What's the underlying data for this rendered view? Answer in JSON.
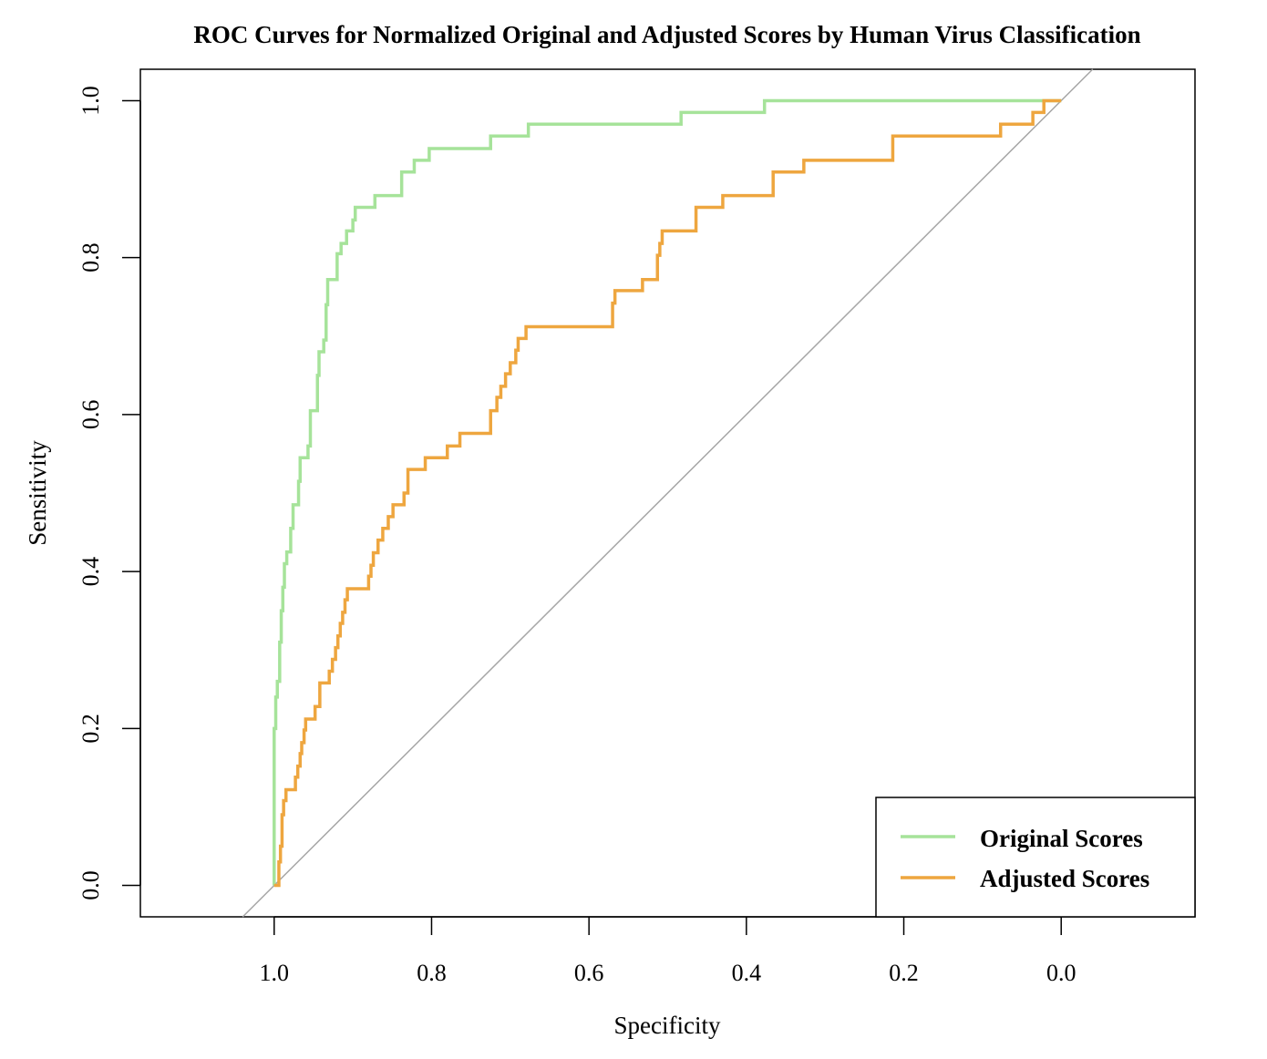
{
  "chart_data": {
    "type": "line",
    "title": "ROC Curves for Normalized Original and Adjusted Scores by Human Virus Classification",
    "xlabel": "Specificity",
    "ylabel": "Sensitivity",
    "x_reversed": true,
    "xlim": [
      1.17,
      -0.17
    ],
    "ylim": [
      -0.04,
      1.04
    ],
    "xticks": [
      "1.0",
      "0.8",
      "0.6",
      "0.4",
      "0.2",
      "0.0"
    ],
    "xtick_values": [
      1.0,
      0.8,
      0.6,
      0.4,
      0.2,
      0.0
    ],
    "yticks": [
      "0.0",
      "0.2",
      "0.4",
      "0.6",
      "0.8",
      "1.0"
    ],
    "ytick_values": [
      0.0,
      0.2,
      0.4,
      0.6,
      0.8,
      1.0
    ],
    "grid": false,
    "legend_position": "bottom-right",
    "reference_line": {
      "from": [
        1.0,
        0.0
      ],
      "to": [
        0.0,
        1.0
      ],
      "color": "#a6a6a6"
    },
    "series": [
      {
        "name": "Original Scores",
        "color": "#a6e39a",
        "points": [
          [
            1.0,
            0.0
          ],
          [
            1.0,
            0.2
          ],
          [
            0.998,
            0.2
          ],
          [
            0.998,
            0.24
          ],
          [
            0.996,
            0.24
          ],
          [
            0.996,
            0.26
          ],
          [
            0.993,
            0.26
          ],
          [
            0.993,
            0.31
          ],
          [
            0.991,
            0.31
          ],
          [
            0.991,
            0.35
          ],
          [
            0.989,
            0.35
          ],
          [
            0.989,
            0.38
          ],
          [
            0.987,
            0.38
          ],
          [
            0.987,
            0.41
          ],
          [
            0.984,
            0.41
          ],
          [
            0.984,
            0.425
          ],
          [
            0.979,
            0.425
          ],
          [
            0.979,
            0.455
          ],
          [
            0.976,
            0.455
          ],
          [
            0.976,
            0.485
          ],
          [
            0.969,
            0.485
          ],
          [
            0.969,
            0.515
          ],
          [
            0.967,
            0.515
          ],
          [
            0.967,
            0.545
          ],
          [
            0.957,
            0.545
          ],
          [
            0.957,
            0.56
          ],
          [
            0.954,
            0.56
          ],
          [
            0.954,
            0.605
          ],
          [
            0.945,
            0.605
          ],
          [
            0.945,
            0.65
          ],
          [
            0.943,
            0.65
          ],
          [
            0.943,
            0.68
          ],
          [
            0.937,
            0.68
          ],
          [
            0.937,
            0.695
          ],
          [
            0.934,
            0.695
          ],
          [
            0.934,
            0.74
          ],
          [
            0.932,
            0.74
          ],
          [
            0.932,
            0.772
          ],
          [
            0.92,
            0.772
          ],
          [
            0.92,
            0.805
          ],
          [
            0.915,
            0.805
          ],
          [
            0.915,
            0.818
          ],
          [
            0.908,
            0.818
          ],
          [
            0.908,
            0.834
          ],
          [
            0.9,
            0.834
          ],
          [
            0.9,
            0.848
          ],
          [
            0.897,
            0.848
          ],
          [
            0.897,
            0.864
          ],
          [
            0.872,
            0.864
          ],
          [
            0.872,
            0.879
          ],
          [
            0.838,
            0.879
          ],
          [
            0.838,
            0.909
          ],
          [
            0.822,
            0.909
          ],
          [
            0.822,
            0.924
          ],
          [
            0.803,
            0.924
          ],
          [
            0.803,
            0.939
          ],
          [
            0.725,
            0.939
          ],
          [
            0.725,
            0.955
          ],
          [
            0.677,
            0.955
          ],
          [
            0.677,
            0.97
          ],
          [
            0.483,
            0.97
          ],
          [
            0.483,
            0.985
          ],
          [
            0.377,
            0.985
          ],
          [
            0.377,
            1.0
          ],
          [
            0.0,
            1.0
          ]
        ]
      },
      {
        "name": "Adjusted Scores",
        "color": "#eea63f",
        "points": [
          [
            1.0,
            0.0
          ],
          [
            0.994,
            0.0
          ],
          [
            0.994,
            0.03
          ],
          [
            0.992,
            0.03
          ],
          [
            0.992,
            0.05
          ],
          [
            0.99,
            0.05
          ],
          [
            0.99,
            0.09
          ],
          [
            0.988,
            0.09
          ],
          [
            0.988,
            0.108
          ],
          [
            0.985,
            0.108
          ],
          [
            0.985,
            0.122
          ],
          [
            0.973,
            0.122
          ],
          [
            0.973,
            0.138
          ],
          [
            0.97,
            0.138
          ],
          [
            0.97,
            0.152
          ],
          [
            0.967,
            0.152
          ],
          [
            0.967,
            0.168
          ],
          [
            0.965,
            0.168
          ],
          [
            0.965,
            0.182
          ],
          [
            0.962,
            0.182
          ],
          [
            0.962,
            0.198
          ],
          [
            0.96,
            0.198
          ],
          [
            0.96,
            0.212
          ],
          [
            0.948,
            0.212
          ],
          [
            0.948,
            0.228
          ],
          [
            0.942,
            0.228
          ],
          [
            0.942,
            0.258
          ],
          [
            0.93,
            0.258
          ],
          [
            0.93,
            0.273
          ],
          [
            0.926,
            0.273
          ],
          [
            0.926,
            0.288
          ],
          [
            0.922,
            0.288
          ],
          [
            0.922,
            0.303
          ],
          [
            0.919,
            0.303
          ],
          [
            0.919,
            0.318
          ],
          [
            0.916,
            0.318
          ],
          [
            0.916,
            0.334
          ],
          [
            0.913,
            0.334
          ],
          [
            0.913,
            0.348
          ],
          [
            0.91,
            0.348
          ],
          [
            0.91,
            0.364
          ],
          [
            0.907,
            0.364
          ],
          [
            0.907,
            0.378
          ],
          [
            0.88,
            0.378
          ],
          [
            0.88,
            0.394
          ],
          [
            0.877,
            0.394
          ],
          [
            0.877,
            0.408
          ],
          [
            0.874,
            0.408
          ],
          [
            0.874,
            0.424
          ],
          [
            0.868,
            0.424
          ],
          [
            0.868,
            0.44
          ],
          [
            0.862,
            0.44
          ],
          [
            0.862,
            0.455
          ],
          [
            0.855,
            0.455
          ],
          [
            0.855,
            0.47
          ],
          [
            0.849,
            0.47
          ],
          [
            0.849,
            0.485
          ],
          [
            0.835,
            0.485
          ],
          [
            0.835,
            0.5
          ],
          [
            0.83,
            0.5
          ],
          [
            0.83,
            0.53
          ],
          [
            0.808,
            0.53
          ],
          [
            0.808,
            0.545
          ],
          [
            0.78,
            0.545
          ],
          [
            0.78,
            0.56
          ],
          [
            0.764,
            0.56
          ],
          [
            0.764,
            0.576
          ],
          [
            0.725,
            0.576
          ],
          [
            0.725,
            0.605
          ],
          [
            0.717,
            0.605
          ],
          [
            0.717,
            0.622
          ],
          [
            0.712,
            0.622
          ],
          [
            0.712,
            0.636
          ],
          [
            0.706,
            0.636
          ],
          [
            0.706,
            0.652
          ],
          [
            0.7,
            0.652
          ],
          [
            0.7,
            0.666
          ],
          [
            0.693,
            0.666
          ],
          [
            0.693,
            0.682
          ],
          [
            0.69,
            0.682
          ],
          [
            0.69,
            0.697
          ],
          [
            0.68,
            0.697
          ],
          [
            0.68,
            0.712
          ],
          [
            0.57,
            0.712
          ],
          [
            0.57,
            0.742
          ],
          [
            0.567,
            0.742
          ],
          [
            0.567,
            0.758
          ],
          [
            0.532,
            0.758
          ],
          [
            0.532,
            0.772
          ],
          [
            0.513,
            0.772
          ],
          [
            0.513,
            0.803
          ],
          [
            0.51,
            0.803
          ],
          [
            0.51,
            0.818
          ],
          [
            0.507,
            0.818
          ],
          [
            0.507,
            0.834
          ],
          [
            0.464,
            0.834
          ],
          [
            0.464,
            0.864
          ],
          [
            0.43,
            0.864
          ],
          [
            0.43,
            0.879
          ],
          [
            0.366,
            0.879
          ],
          [
            0.366,
            0.909
          ],
          [
            0.327,
            0.909
          ],
          [
            0.327,
            0.924
          ],
          [
            0.214,
            0.924
          ],
          [
            0.214,
            0.955
          ],
          [
            0.077,
            0.955
          ],
          [
            0.077,
            0.97
          ],
          [
            0.036,
            0.97
          ],
          [
            0.036,
            0.985
          ],
          [
            0.022,
            0.985
          ],
          [
            0.022,
            1.0
          ],
          [
            0.0,
            1.0
          ]
        ]
      }
    ]
  }
}
